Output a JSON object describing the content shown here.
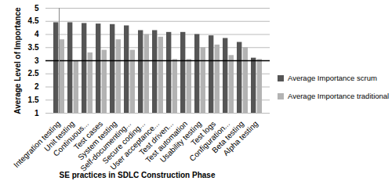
{
  "chart_data": {
    "type": "bar",
    "x_label": "SE practices in SDLC Construction Phase",
    "y_label": "Average Level of Importance",
    "categories": [
      "Integration testing",
      "Unit testing",
      "Continuous...",
      "Test cases",
      "System testing",
      "Self-documenting...",
      "Secure coding...",
      "User acceptance...",
      "Test driven...",
      "Test automation",
      "Usability testing",
      "Test logs",
      "Configuration...",
      "Beta testing",
      "Alpha testing"
    ],
    "series": [
      {
        "name": "Average Importance scrum",
        "color": "#555555",
        "values": [
          4.45,
          4.45,
          4.42,
          4.4,
          4.38,
          4.33,
          4.15,
          4.15,
          4.08,
          4.08,
          4.0,
          3.95,
          3.85,
          3.7,
          3.1
        ]
      },
      {
        "name": "Average Importance traditional",
        "color": "#b3b3b3",
        "values": [
          3.8,
          3.0,
          3.3,
          3.4,
          3.8,
          3.4,
          4.0,
          3.9,
          3.05,
          3.05,
          3.5,
          3.6,
          3.2,
          3.5,
          3.05
        ]
      }
    ],
    "ylim": [
      1,
      5
    ],
    "yticks": [
      1,
      1.5,
      2,
      2.5,
      3,
      3.5,
      4,
      4.5,
      5
    ],
    "reference_line": 3,
    "grid": true,
    "legend": "right"
  }
}
